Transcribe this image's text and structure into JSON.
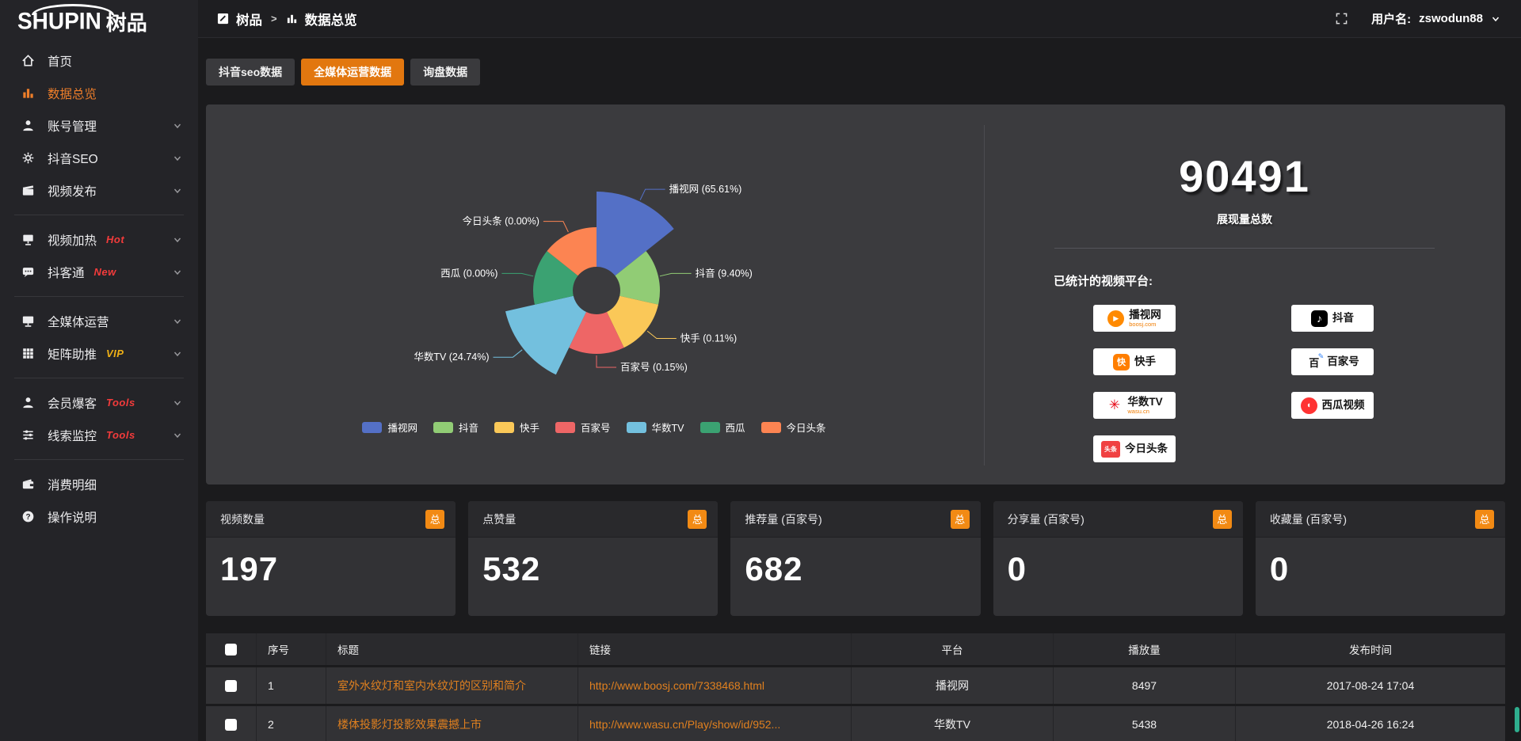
{
  "logo": {
    "brand": "SHUPIN",
    "brand_cn": "树品"
  },
  "topbar": {
    "breadcrumb_root": "树品",
    "breadcrumb_separator": ">",
    "breadcrumb_current": "数据总览",
    "username_label": "用户名:",
    "username": "zswodun88"
  },
  "sidebar": {
    "groups": [
      {
        "items": [
          {
            "label": "首页",
            "icon": "home"
          },
          {
            "label": "数据总览",
            "icon": "chart",
            "active": true
          },
          {
            "label": "账号管理",
            "icon": "user",
            "chevron": true
          },
          {
            "label": "抖音SEO",
            "icon": "gear",
            "chevron": true
          },
          {
            "label": "视频发布",
            "icon": "video",
            "chevron": true
          }
        ]
      },
      {
        "items": [
          {
            "label": "视频加热",
            "icon": "heat",
            "chevron": true,
            "badge": "Hot",
            "badge_color": "#f33b3b"
          },
          {
            "label": "抖客通",
            "icon": "chat",
            "chevron": true,
            "badge": "New",
            "badge_color": "#f33b3b"
          }
        ]
      },
      {
        "items": [
          {
            "label": "全媒体运营",
            "icon": "monitor",
            "chevron": true
          },
          {
            "label": "矩阵助推",
            "icon": "grid",
            "chevron": true,
            "badge": "VIP",
            "badge_color": "#eeb016"
          }
        ]
      },
      {
        "items": [
          {
            "label": "会员爆客",
            "icon": "user",
            "chevron": true,
            "badge": "Tools",
            "badge_color": "#f33b3b"
          },
          {
            "label": "线索监控",
            "icon": "sliders",
            "chevron": true,
            "badge": "Tools",
            "badge_color": "#f33b3b"
          }
        ]
      },
      {
        "items": [
          {
            "label": "消费明细",
            "icon": "wallet"
          },
          {
            "label": "操作说明",
            "icon": "help"
          }
        ]
      }
    ]
  },
  "tabs": [
    {
      "label": "抖音seo数据",
      "active": false
    },
    {
      "label": "全媒体运营数据",
      "active": true
    },
    {
      "label": "询盘数据",
      "active": false
    }
  ],
  "chart_data": {
    "type": "pie",
    "variant": "rose",
    "categories": [
      "播视网",
      "抖音",
      "快手",
      "百家号",
      "华数TV",
      "西瓜",
      "今日头条"
    ],
    "values": [
      65.61,
      9.4,
      0.11,
      0.15,
      24.74,
      0.0,
      0.0
    ],
    "unit": "%",
    "colors": [
      "#5470c6",
      "#91cc75",
      "#fac858",
      "#ee6666",
      "#73c0de",
      "#3ba272",
      "#fc8452"
    ],
    "label_format": "{name} ({value}%)",
    "legend_position": "bottom",
    "inner_radius": 30,
    "display_radii": [
      125,
      80,
      80,
      80,
      118,
      80,
      80
    ]
  },
  "summary": {
    "total": "90491",
    "total_label": "展现量总数",
    "platforms_label": "已统计的视频平台:",
    "platforms_left": [
      {
        "name": "播视网",
        "sub": "boosj.com",
        "icon": "boosj-icon"
      },
      {
        "name": "快手",
        "icon": "kuaishou-icon"
      },
      {
        "name": "华数TV",
        "sub": "wasu.cn",
        "icon": "wasu-icon"
      },
      {
        "name": "今日头条",
        "icon": "toutiao-icon"
      }
    ],
    "platforms_right": [
      {
        "name": "抖音",
        "icon": "douyin-icon"
      },
      {
        "name": "百家号",
        "icon": "baijiahao-icon"
      },
      {
        "name": "西瓜视频",
        "icon": "xigua-icon"
      }
    ]
  },
  "stat_cards": [
    {
      "label": "视频数量",
      "badge": "总",
      "value": "197"
    },
    {
      "label": "点赞量",
      "badge": "总",
      "value": "532"
    },
    {
      "label": "推荐量 (百家号)",
      "badge": "总",
      "value": "682"
    },
    {
      "label": "分享量 (百家号)",
      "badge": "总",
      "value": "0"
    },
    {
      "label": "收藏量 (百家号)",
      "badge": "总",
      "value": "0"
    }
  ],
  "table": {
    "headers": [
      "序号",
      "标题",
      "链接",
      "平台",
      "播放量",
      "发布时间"
    ],
    "rows": [
      {
        "no": "1",
        "title": "室外水纹灯和室内水纹灯的区别和简介",
        "link": "http://www.boosj.com/7338468.html",
        "platform": "播视网",
        "plays": "8497",
        "time": "2017-08-24 17:04"
      },
      {
        "no": "2",
        "title": "楼体投影灯投影效果震撼上市",
        "link": "http://www.wasu.cn/Play/show/id/952...",
        "platform": "华数TV",
        "plays": "5438",
        "time": "2018-04-26 16:24"
      }
    ]
  },
  "colors": {
    "accent": "#e2770f",
    "total_badge": "#f28a14",
    "link": "#e0801f",
    "sidebar_active": "#ee7e2a"
  }
}
